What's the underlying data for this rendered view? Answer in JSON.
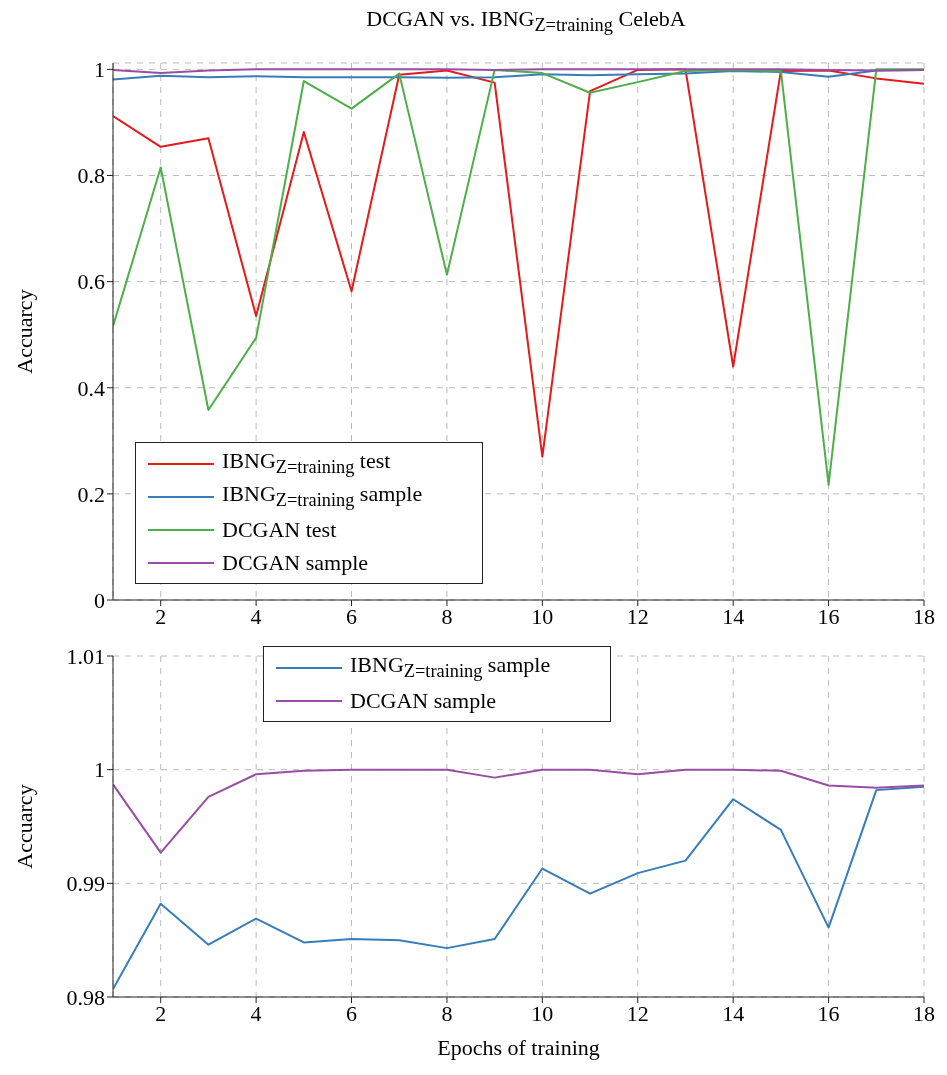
{
  "chart_data": [
    {
      "type": "line",
      "title": "DCGAN vs. IBNG$_{Z=training}$ CelebA",
      "ylabel": "Accuarcy",
      "x": [
        1,
        2,
        3,
        4,
        5,
        6,
        7,
        8,
        9,
        10,
        11,
        12,
        13,
        14,
        15,
        16,
        17,
        18
      ],
      "xlim": [
        1,
        18
      ],
      "xticks": [
        2,
        4,
        6,
        8,
        10,
        12,
        14,
        16,
        18
      ],
      "ylim": [
        0,
        1.012
      ],
      "yticks": [
        0,
        0.2,
        0.4,
        0.6,
        0.8,
        1
      ],
      "grid": true,
      "legend": "bottom left",
      "line_style": "solid",
      "series": [
        {
          "name": "IBNG$_{Z=training}$ test",
          "color": "#e41a1c",
          "values": [
            0.912,
            0.854,
            0.87,
            0.535,
            0.882,
            0.582,
            0.99,
            0.998,
            0.975,
            0.27,
            0.959,
            0.999,
            1.0,
            0.44,
            0.997,
            0.998,
            0.983,
            0.973
          ]
        },
        {
          "name": "IBNG$_{Z=training}$ sample",
          "color": "#377eb8",
          "values": [
            0.981,
            0.988,
            0.985,
            0.987,
            0.985,
            0.985,
            0.985,
            0.984,
            0.985,
            0.991,
            0.989,
            0.991,
            0.992,
            0.997,
            0.995,
            0.986,
            0.998,
            0.999
          ]
        },
        {
          "name": "DCGAN test",
          "color": "#4daf4a",
          "values": [
            0.516,
            0.815,
            0.358,
            0.494,
            0.978,
            0.926,
            0.992,
            0.613,
            0.999,
            0.993,
            0.956,
            0.976,
            0.997,
            0.999,
            0.997,
            0.217,
            1.0,
            1.0
          ]
        },
        {
          "name": "DCGAN sample",
          "color": "#984ea3",
          "values": [
            0.999,
            0.993,
            0.998,
            1.0,
            1.0,
            1.0,
            1.0,
            1.0,
            0.999,
            1.0,
            1.0,
            1.0,
            1.0,
            1.0,
            1.0,
            0.999,
            0.998,
            0.999
          ]
        }
      ]
    },
    {
      "type": "line",
      "xlabel": "Epochs of training",
      "ylabel": "Accuarcy",
      "x": [
        1,
        2,
        3,
        4,
        5,
        6,
        7,
        8,
        9,
        10,
        11,
        12,
        13,
        14,
        15,
        16,
        17,
        18
      ],
      "xlim": [
        1,
        18
      ],
      "xticks": [
        2,
        4,
        6,
        8,
        10,
        12,
        14,
        16,
        18
      ],
      "ylim": [
        0.98,
        1.01
      ],
      "yticks": [
        0.98,
        0.99,
        1,
        1.01
      ],
      "grid": true,
      "legend": "top",
      "line_style": "solid",
      "series": [
        {
          "name": "IBNG$_{Z=training}$ sample",
          "color": "#377eb8",
          "values": [
            0.9807,
            0.9882,
            0.9846,
            0.9869,
            0.9848,
            0.9851,
            0.985,
            0.9843,
            0.9851,
            0.9913,
            0.9891,
            0.9909,
            0.992,
            0.9974,
            0.9947,
            0.9861,
            0.9982,
            0.9985
          ]
        },
        {
          "name": "DCGAN sample",
          "color": "#984ea3",
          "values": [
            0.9987,
            0.9927,
            0.9976,
            0.9996,
            0.9999,
            1.0,
            1.0,
            1.0,
            0.9993,
            1.0,
            1.0,
            0.9996,
            1.0,
            1.0,
            0.9999,
            0.9986,
            0.9984,
            0.9986
          ]
        }
      ]
    }
  ]
}
